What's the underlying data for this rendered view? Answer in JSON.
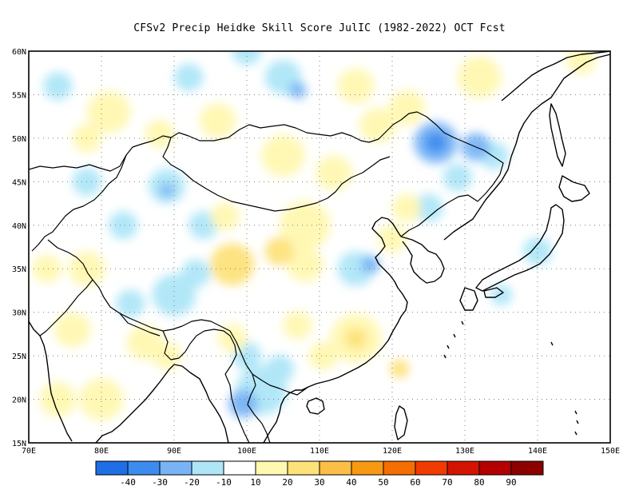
{
  "title": "CFSv2 Precip Heidke Skill Score JulIC (1982-2022) OCT Fcst",
  "map": {
    "lon_range": [
      70,
      150
    ],
    "lat_range": [
      15,
      60
    ],
    "lon_labels": [
      "70E",
      "80E",
      "90E",
      "100E",
      "110E",
      "120E",
      "130E",
      "140E",
      "150E"
    ],
    "lat_labels": [
      "15N",
      "20N",
      "25N",
      "30N",
      "35N",
      "40N",
      "45N",
      "50N",
      "55N",
      "60N"
    ],
    "gridlines": "dotted"
  },
  "colorbar": {
    "colors": [
      "#1e6ee6",
      "#3c8cf0",
      "#78b4f5",
      "#aee6f8",
      "#ffffff",
      "#fff8b0",
      "#fde27a",
      "#fbbf45",
      "#f79a12",
      "#f56e00",
      "#f03c00",
      "#d21400",
      "#b40000",
      "#8c0000"
    ],
    "labels": [
      "-40",
      "-30",
      "-20",
      "-10",
      "10",
      "20",
      "30",
      "40",
      "50",
      "60",
      "70",
      "80",
      "90"
    ]
  },
  "field": [
    {
      "lon": 81,
      "lat": 53,
      "v": 15,
      "r": 3
    },
    {
      "lon": 96,
      "lat": 52,
      "v": 15,
      "r": 2.5
    },
    {
      "lon": 115,
      "lat": 56,
      "v": 18,
      "r": 2.5
    },
    {
      "lon": 122,
      "lat": 53.5,
      "v": 18,
      "r": 2.5
    },
    {
      "lon": 132,
      "lat": 57,
      "v": 15,
      "r": 3
    },
    {
      "lon": 146,
      "lat": 59,
      "v": 15,
      "r": 2
    },
    {
      "lon": 105,
      "lat": 57,
      "v": -15,
      "r": 2.5
    },
    {
      "lon": 107,
      "lat": 55.5,
      "v": -25,
      "r": 1.2
    },
    {
      "lon": 100,
      "lat": 60,
      "v": -15,
      "r": 2
    },
    {
      "lon": 78,
      "lat": 50,
      "v": 15,
      "r": 2
    },
    {
      "lon": 88,
      "lat": 50.5,
      "v": 15,
      "r": 2
    },
    {
      "lon": 105,
      "lat": 48,
      "v": 15,
      "r": 3
    },
    {
      "lon": 112,
      "lat": 46,
      "v": 15,
      "r": 2.5
    },
    {
      "lon": 118,
      "lat": 51.5,
      "v": 15,
      "r": 2.5
    },
    {
      "lon": 126,
      "lat": 49.5,
      "v": -20,
      "r": 3
    },
    {
      "lon": 126,
      "lat": 49.5,
      "v": -30,
      "r": 1.5
    },
    {
      "lon": 131.5,
      "lat": 49,
      "v": -25,
      "r": 2
    },
    {
      "lon": 134,
      "lat": 48,
      "v": -15,
      "r": 2
    },
    {
      "lon": 129,
      "lat": 45.5,
      "v": -15,
      "r": 2
    },
    {
      "lon": 89,
      "lat": 44.5,
      "v": -15,
      "r": 2.5
    },
    {
      "lon": 89,
      "lat": 44,
      "v": -25,
      "r": 1
    },
    {
      "lon": 78,
      "lat": 45,
      "v": -15,
      "r": 2
    },
    {
      "lon": 94,
      "lat": 40,
      "v": -15,
      "r": 2
    },
    {
      "lon": 83,
      "lat": 40,
      "v": -15,
      "r": 2
    },
    {
      "lon": 97,
      "lat": 41,
      "v": 15,
      "r": 2
    },
    {
      "lon": 108,
      "lat": 40,
      "v": 18,
      "r": 3.5
    },
    {
      "lon": 104.5,
      "lat": 37,
      "v": 25,
      "r": 2
    },
    {
      "lon": 98,
      "lat": 35.5,
      "v": 22,
      "r": 3
    },
    {
      "lon": 108,
      "lat": 35.5,
      "v": 18,
      "r": 2.5
    },
    {
      "lon": 93,
      "lat": 34.5,
      "v": -15,
      "r": 2
    },
    {
      "lon": 90,
      "lat": 32,
      "v": -15,
      "r": 3
    },
    {
      "lon": 115,
      "lat": 35,
      "v": -15,
      "r": 2.5
    },
    {
      "lon": 117,
      "lat": 35.5,
      "v": -25,
      "r": 1.3
    },
    {
      "lon": 120,
      "lat": 38.5,
      "v": 15,
      "r": 2
    },
    {
      "lon": 115,
      "lat": 27,
      "v": 20,
      "r": 3.5
    },
    {
      "lon": 115,
      "lat": 27,
      "v": 30,
      "r": 1.5
    },
    {
      "lon": 110.5,
      "lat": 25,
      "v": 15,
      "r": 2
    },
    {
      "lon": 107,
      "lat": 28.5,
      "v": 15,
      "r": 2
    },
    {
      "lon": 98,
      "lat": 27,
      "v": 18,
      "r": 2
    },
    {
      "lon": 102,
      "lat": 21,
      "v": -15,
      "r": 3.5
    },
    {
      "lon": 99.5,
      "lat": 19.5,
      "v": -25,
      "r": 2
    },
    {
      "lon": 104.5,
      "lat": 23.5,
      "v": -15,
      "r": 2
    },
    {
      "lon": 100,
      "lat": 25,
      "v": -15,
      "r": 2
    },
    {
      "lon": 80,
      "lat": 20,
      "v": 20,
      "r": 3
    },
    {
      "lon": 74,
      "lat": 20,
      "v": 15,
      "r": 2.5
    },
    {
      "lon": 86,
      "lat": 26.5,
      "v": 15,
      "r": 2.5
    },
    {
      "lon": 89,
      "lat": 25,
      "v": 15,
      "r": 2
    },
    {
      "lon": 84,
      "lat": 31,
      "v": -15,
      "r": 2
    },
    {
      "lon": 72.5,
      "lat": 35,
      "v": 15,
      "r": 2
    },
    {
      "lon": 78,
      "lat": 35,
      "v": 15,
      "r": 2.5
    },
    {
      "lon": 76,
      "lat": 28,
      "v": 15,
      "r": 2.5
    },
    {
      "lon": 121,
      "lat": 23.5,
      "v": 25,
      "r": 1.3
    },
    {
      "lon": 125,
      "lat": 42,
      "v": -15,
      "r": 2
    },
    {
      "lon": 122,
      "lat": 42,
      "v": 15,
      "r": 2
    },
    {
      "lon": 140,
      "lat": 37,
      "v": -15,
      "r": 2
    },
    {
      "lon": 135,
      "lat": 32,
      "v": -15,
      "r": 1.5
    },
    {
      "lon": 74,
      "lat": 56,
      "v": -15,
      "r": 2
    },
    {
      "lon": 92,
      "lat": 57,
      "v": -15,
      "r": 2
    }
  ]
}
